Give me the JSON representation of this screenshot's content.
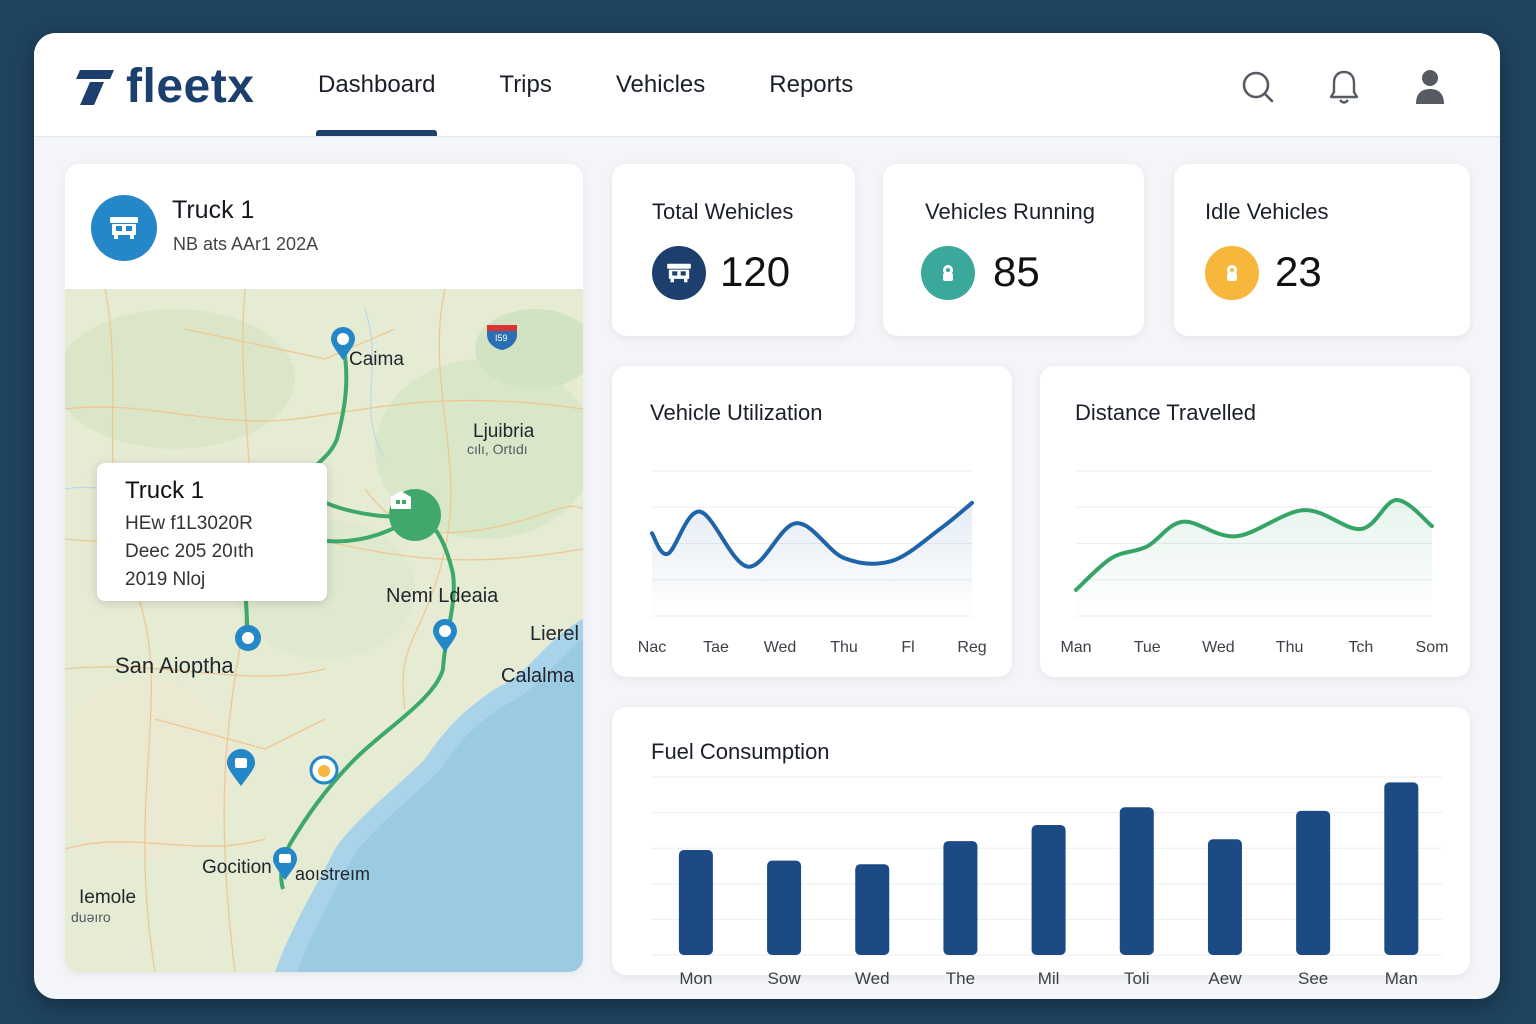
{
  "app": {
    "logo_text": "fleetx"
  },
  "nav": [
    {
      "label": "Dashboard",
      "active": true
    },
    {
      "label": "Trips",
      "active": false
    },
    {
      "label": "Vehicles",
      "active": false
    },
    {
      "label": "Reports",
      "active": false
    }
  ],
  "top_icons": [
    "search-icon",
    "bell-icon",
    "user-icon"
  ],
  "truck_card": {
    "title": "Truck 1",
    "subtitle": "NB ats AAr1 202A",
    "popup": {
      "title": "Truck 1",
      "lines": [
        "HEw f1L3020R",
        "Deec 205 20ıth",
        "2019 Nloj"
      ]
    },
    "map_labels": {
      "caima": "Caima",
      "ljuibria": "Ljuibria",
      "ljuibria_sub": "cılı, Ortıdı",
      "nemi": "Nemi Ldeaia",
      "lierel": "Lierel",
      "calalma": "Calalma",
      "san": "San Aioptha",
      "gocitio": "Gocition",
      "aoist": "aoıstreım",
      "iemole": "Iemole",
      "iemole_sub": "duǝıro",
      "shield": "I59"
    }
  },
  "stats": {
    "total": {
      "title": "Total Wehicles",
      "value": "120",
      "color": "#1d3f6e"
    },
    "running": {
      "title": "Vehicles Running",
      "value": "85",
      "color": "#3aa89a"
    },
    "idle": {
      "title": "Idle Vehicles",
      "value": "23",
      "color": "#f6b73c"
    }
  },
  "utilization": {
    "title": "Vehicle Utilization",
    "days": [
      "Nac",
      "Tae",
      "Wed",
      "Thu",
      "Fl",
      "Reg"
    ]
  },
  "distance": {
    "title": "Distance Travelled",
    "days": [
      "Man",
      "Tue",
      "Wed",
      "Thu",
      "Tch",
      "Som"
    ]
  },
  "fuel": {
    "title": "Fuel Consumption",
    "days": [
      "Mon",
      "Sow",
      "Wed",
      "The",
      "Mil",
      "Toli",
      "Aew",
      "See",
      "Man"
    ]
  },
  "chart_data": [
    {
      "type": "line",
      "title": "Vehicle Utilization",
      "x": [
        0,
        0.25,
        0.75,
        1.5,
        2.25,
        3,
        3.75,
        4.5,
        5
      ],
      "y": [
        57,
        43,
        72,
        34,
        64,
        40,
        38,
        60,
        78
      ],
      "color": "#1f63a8",
      "ylim": [
        0,
        100
      ],
      "categories": [
        "Nac",
        "Tae",
        "Wed",
        "Thu",
        "Fl",
        "Reg"
      ],
      "grid": true
    },
    {
      "type": "line",
      "title": "Distance Travelled",
      "x": [
        0,
        0.5,
        1.0,
        1.5,
        2.25,
        3.2,
        4.0,
        4.5,
        5
      ],
      "y": [
        18,
        40,
        48,
        65,
        55,
        73,
        60,
        80,
        62
      ],
      "color": "#35a466",
      "ylim": [
        0,
        100
      ],
      "categories": [
        "Man",
        "Tue",
        "Wed",
        "Thu",
        "Tch",
        "Som"
      ],
      "grid": true
    },
    {
      "type": "bar",
      "title": "Fuel Consumption",
      "categories": [
        "Mon",
        "Sow",
        "Wed",
        "The",
        "Mil",
        "Toli",
        "Aew",
        "See",
        "Man"
      ],
      "values": [
        59,
        53,
        51,
        64,
        73,
        83,
        65,
        81,
        97
      ],
      "color": "#1c4a85",
      "ylim": [
        0,
        100
      ],
      "grid": true
    }
  ]
}
